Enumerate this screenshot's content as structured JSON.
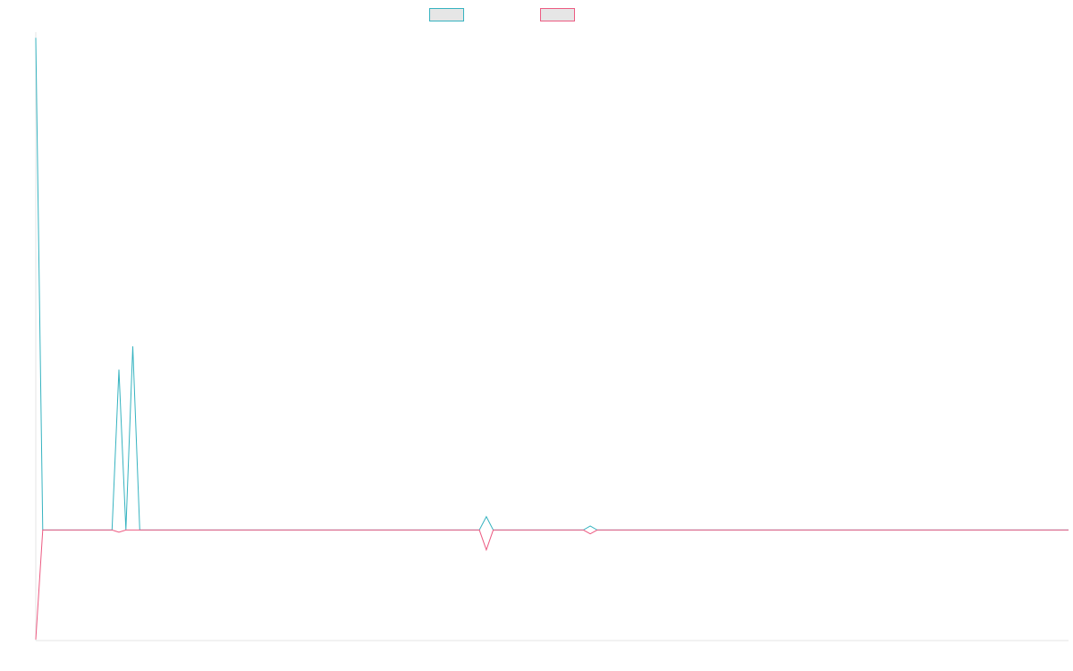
{
  "chart_data": {
    "type": "line",
    "title": "",
    "xlabel": "",
    "ylabel": "",
    "legend_position": "top-center",
    "grid": false,
    "x_count": 150,
    "ylim": [
      -10,
      45
    ],
    "series": [
      {
        "color": "#36b3c0",
        "points": [
          [
            0,
            44.5
          ],
          [
            1,
            0
          ],
          [
            11,
            0
          ],
          [
            12,
            14.5
          ],
          [
            13,
            0
          ],
          [
            14,
            16.6
          ],
          [
            15,
            0
          ],
          [
            64,
            0
          ],
          [
            65,
            1.2
          ],
          [
            66,
            0
          ],
          [
            79,
            0
          ],
          [
            80,
            0.35
          ],
          [
            81,
            0
          ],
          [
            149,
            0
          ]
        ]
      },
      {
        "color": "#ec5b82",
        "points": [
          [
            0,
            -9.9
          ],
          [
            1,
            0
          ],
          [
            11,
            0
          ],
          [
            12,
            -0.2
          ],
          [
            13,
            0
          ],
          [
            15,
            0
          ],
          [
            64,
            0
          ],
          [
            65,
            -1.8
          ],
          [
            66,
            0
          ],
          [
            79,
            0
          ],
          [
            80,
            -0.35
          ],
          [
            81,
            0
          ],
          [
            149,
            0
          ]
        ]
      }
    ]
  }
}
